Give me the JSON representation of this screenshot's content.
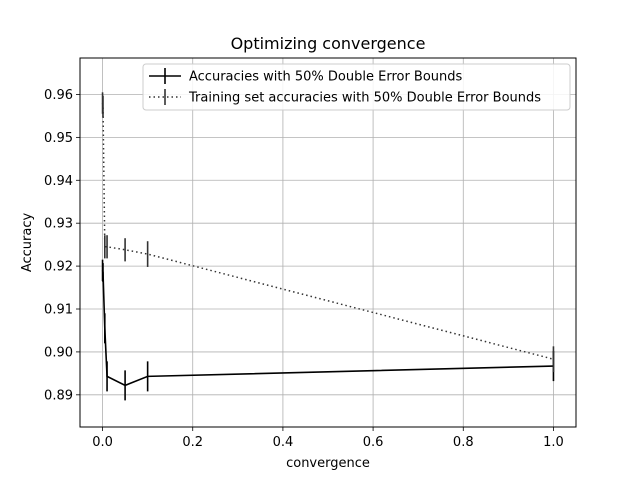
{
  "chart_data": {
    "type": "line",
    "title": "Optimizing convergence",
    "xlabel": "convergence",
    "ylabel": "Accuracy",
    "xlim": [
      -0.05,
      1.05
    ],
    "ylim": [
      0.8825,
      0.9685
    ],
    "xticks": [
      0.0,
      0.2,
      0.4,
      0.6,
      0.8,
      1.0
    ],
    "xtick_labels": [
      "0.0",
      "0.2",
      "0.4",
      "0.6",
      "0.8",
      "1.0"
    ],
    "yticks": [
      0.89,
      0.9,
      0.91,
      0.92,
      0.93,
      0.94,
      0.95,
      0.96
    ],
    "ytick_labels": [
      "0.89",
      "0.90",
      "0.91",
      "0.92",
      "0.93",
      "0.94",
      "0.95",
      "0.96"
    ],
    "grid": true,
    "legend_position": "top-right",
    "series": [
      {
        "name": "Accuracies with 50% Double Error Bounds",
        "style": "solid",
        "color": "#000000",
        "x": [
          0.0,
          0.001,
          0.005,
          0.01,
          0.05,
          0.1,
          1.0
        ],
        "y": [
          0.919,
          0.9185,
          0.9055,
          0.8943,
          0.8922,
          0.8943,
          0.8967
        ],
        "err": [
          0.0025,
          0.0022,
          0.0035,
          0.0035,
          0.0035,
          0.0035,
          0.0035
        ]
      },
      {
        "name": "Training set accuracies with 50% Double Error Bounds",
        "style": "dotted",
        "color": "#333333",
        "x": [
          0.0,
          0.001,
          0.005,
          0.01,
          0.05,
          0.1,
          1.0
        ],
        "y": [
          0.958,
          0.9572,
          0.9245,
          0.9245,
          0.9238,
          0.9228,
          0.8983
        ],
        "err": [
          0.0025,
          0.0025,
          0.0027,
          0.0027,
          0.0027,
          0.003,
          0.003
        ]
      }
    ]
  }
}
